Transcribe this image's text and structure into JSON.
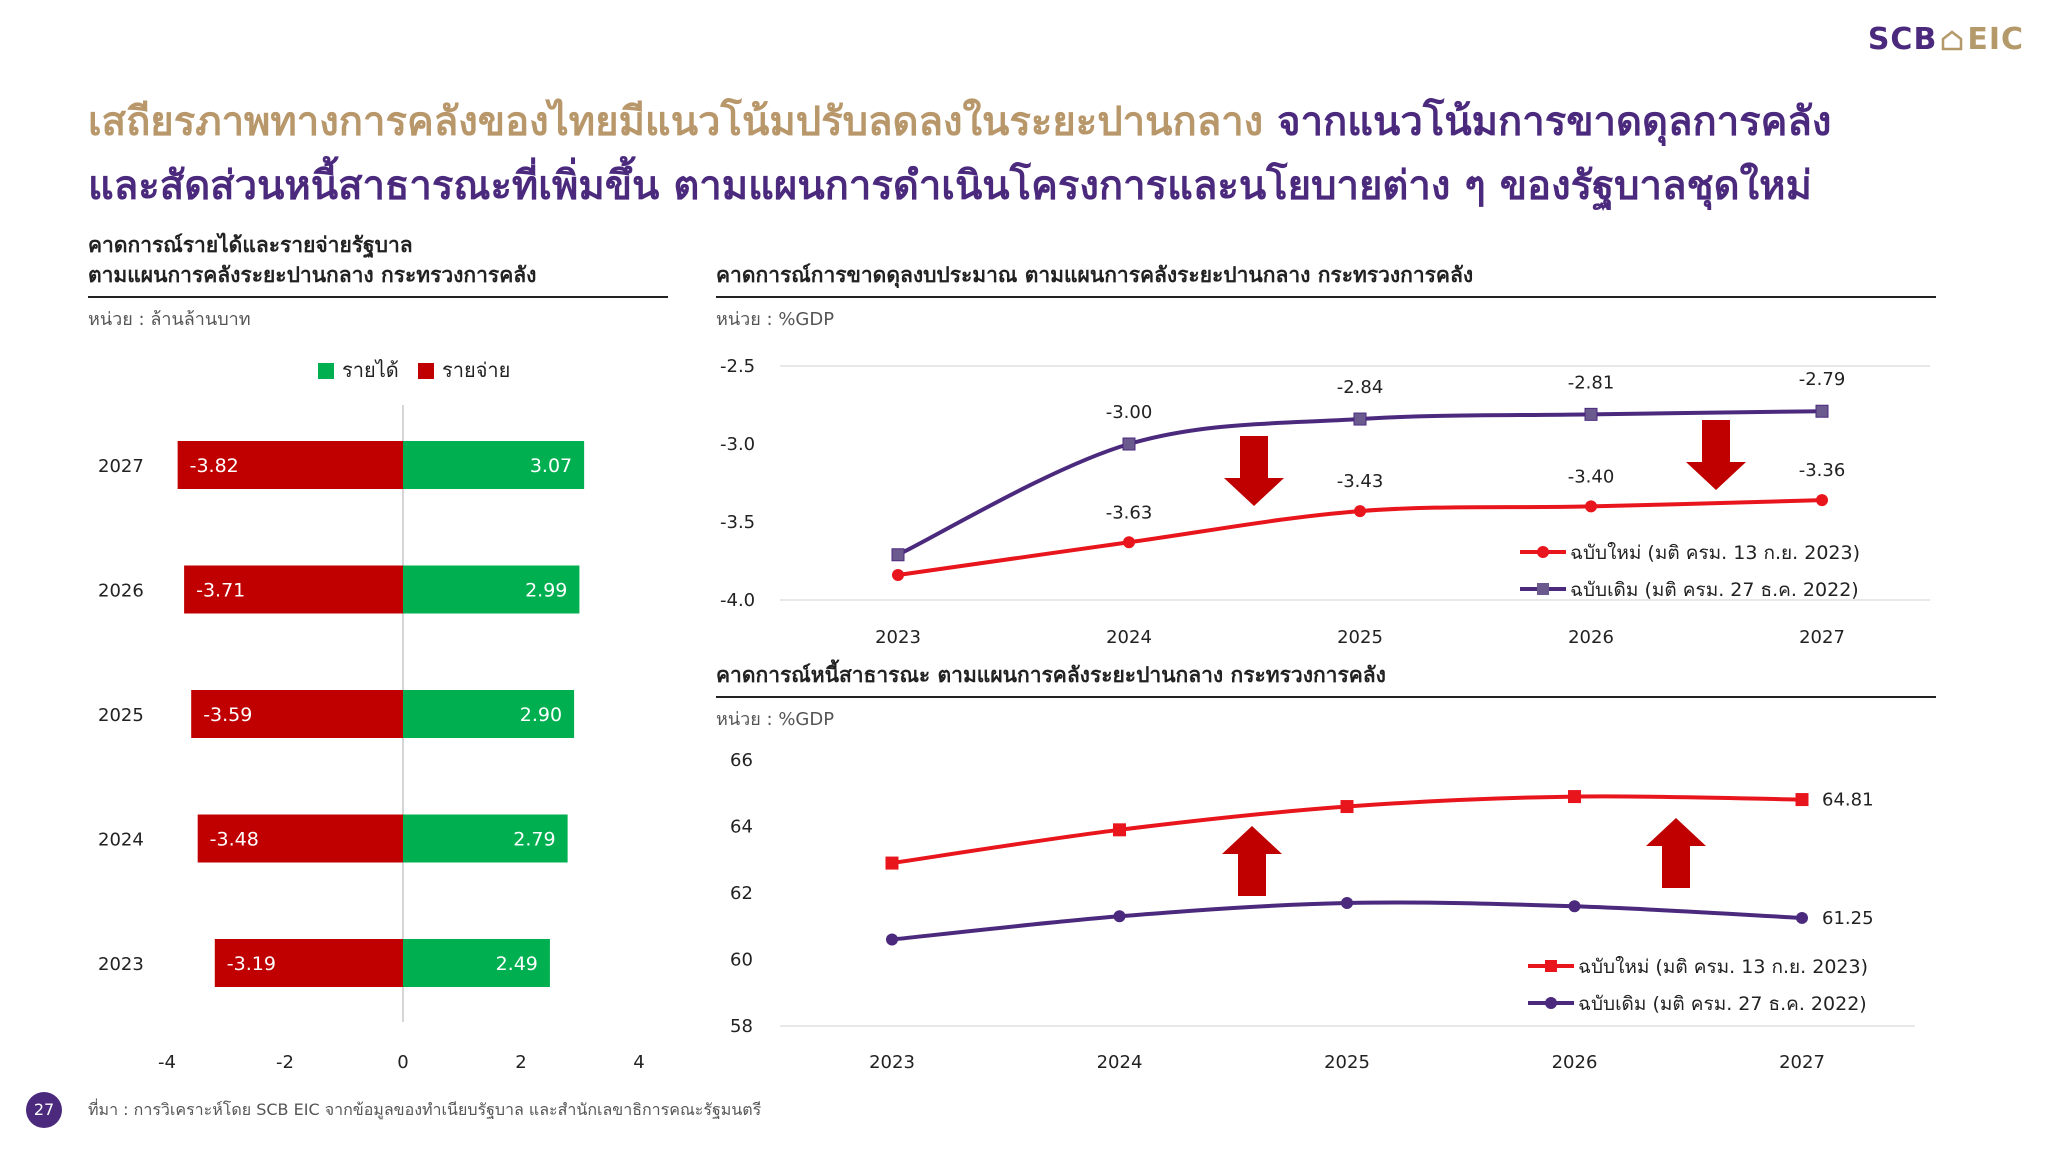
{
  "logo": {
    "scb": "SCB",
    "eic": "EIC"
  },
  "title": {
    "part1": "เสถียรภาพทางการคลังของไทยมีแนวโน้มปรับลดลงในระยะปานกลาง",
    "part2": "จากแนวโน้มการขาดดุลการคลัง",
    "part3": "และสัดส่วนหนี้สาธารณะที่เพิ่มขึ้น ตามแผนการดำเนินโครงการและนโยบายต่าง ๆ ของรัฐบาลชุดใหม่"
  },
  "page_number": "27",
  "footer": "ที่มา : การวิเคราะห์โดย SCB EIC จากข้อมูลของทำเนียบรัฐบาล และสำนักเลขาธิการคณะรัฐมนตรี",
  "chart_data": [
    {
      "type": "bar",
      "orientation": "horizontal",
      "title_line1": "คาดการณ์รายได้และรายจ่ายรัฐบาล",
      "title_line2": "ตามแผนการคลังระยะปานกลาง กระทรวงการคลัง",
      "unit": "หน่วย : ล้านล้านบาท",
      "categories": [
        "2027",
        "2026",
        "2025",
        "2024",
        "2023"
      ],
      "series": [
        {
          "name": "รายได้",
          "color": "#00b050",
          "values": [
            3.07,
            2.99,
            2.9,
            2.79,
            2.49
          ],
          "labels": [
            "3.07",
            "2.99",
            "2.90",
            "2.79",
            "2.49"
          ]
        },
        {
          "name": "รายจ่าย",
          "color": "#c00000",
          "values": [
            -3.82,
            -3.71,
            -3.59,
            -3.48,
            -3.19
          ],
          "labels": [
            "-3.82",
            "-3.71",
            "-3.59",
            "-3.48",
            "-3.19"
          ]
        }
      ],
      "xlim": [
        -4,
        4
      ],
      "xticks": [
        "-4",
        "-2",
        "0",
        "2",
        "4"
      ],
      "legend": "top"
    },
    {
      "type": "line",
      "title": "คาดการณ์การขาดดุลงบประมาณ ตามแผนการคลังระยะปานกลาง กระทรวงการคลัง",
      "unit": "หน่วย : %GDP",
      "x": [
        "2023",
        "2024",
        "2025",
        "2026",
        "2027"
      ],
      "ylim": [
        -4.0,
        -2.5
      ],
      "yticks": [
        "-2.5",
        "-3.0",
        "-3.5",
        "-4.0"
      ],
      "series": [
        {
          "name": "ฉบับใหม่ (มติ ครม. 13 ก.ย. 2023)",
          "color": "#e8161c",
          "marker": "circle",
          "values": [
            -3.84,
            -3.63,
            -3.43,
            -3.4,
            -3.36
          ],
          "labels": [
            "",
            "-3.63",
            "-3.43",
            "-3.40",
            "-3.36"
          ]
        },
        {
          "name": "ฉบับเดิม (มติ ครม. 27 ธ.ค. 2022)",
          "color": "#4b2a7e",
          "marker": "square",
          "values": [
            -3.71,
            -3.0,
            -2.84,
            -2.81,
            -2.79
          ],
          "labels": [
            "",
            "-3.00",
            "-2.84",
            "-2.81",
            "-2.79"
          ]
        }
      ],
      "annotations": [
        "down-arrow",
        "down-arrow"
      ],
      "legend": "bottom-right"
    },
    {
      "type": "line",
      "title": "คาดการณ์หนี้สาธารณะ ตามแผนการคลังระยะปานกลาง กระทรวงการคลัง",
      "unit": "หน่วย : %GDP",
      "x": [
        "2023",
        "2024",
        "2025",
        "2026",
        "2027"
      ],
      "ylim": [
        58,
        66
      ],
      "yticks": [
        "66",
        "64",
        "62",
        "60",
        "58"
      ],
      "series": [
        {
          "name": "ฉบับใหม่ (มติ ครม. 13 ก.ย. 2023)",
          "color": "#e8161c",
          "marker": "square",
          "values": [
            62.9,
            63.9,
            64.6,
            64.9,
            64.81
          ],
          "labels": [
            "",
            "",
            "",
            "",
            "64.81"
          ]
        },
        {
          "name": "ฉบับเดิม (มติ ครม. 27 ธ.ค. 2022)",
          "color": "#4b2a7e",
          "marker": "circle",
          "values": [
            60.6,
            61.3,
            61.7,
            61.6,
            61.25
          ],
          "labels": [
            "",
            "",
            "",
            "",
            "61.25"
          ]
        }
      ],
      "annotations": [
        "up-arrow",
        "up-arrow"
      ],
      "legend": "bottom-right"
    }
  ]
}
